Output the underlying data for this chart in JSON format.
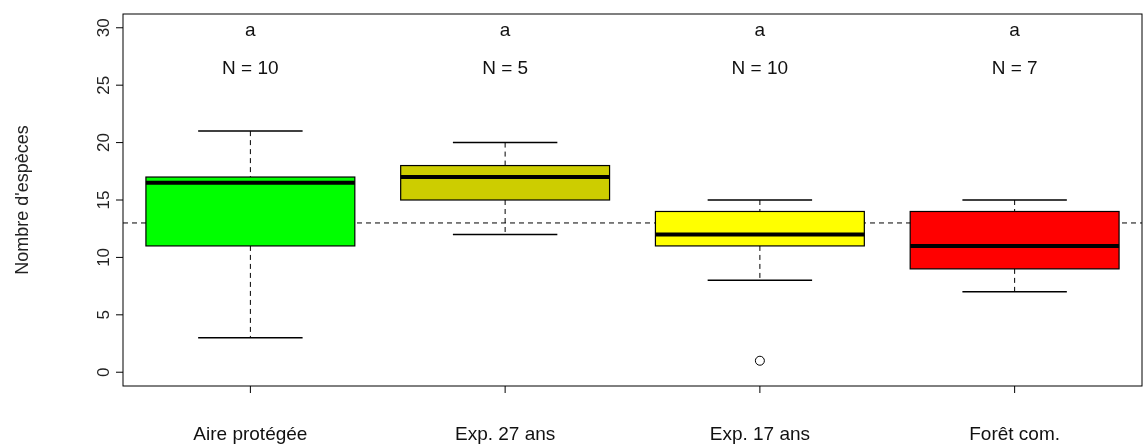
{
  "chart_data": {
    "type": "box",
    "ylabel": "Nombre d'espèces",
    "categories": [
      "Aire protégée",
      "Exp. 27 ans",
      "Exp. 17 ans",
      "Forêt com."
    ],
    "colors": [
      "#00ff00",
      "#cdcd00",
      "#ffff00",
      "#ff0000"
    ],
    "boxes": [
      {
        "low": 3,
        "q1": 11,
        "median": 16.5,
        "q3": 17,
        "high": 21
      },
      {
        "low": 12,
        "q1": 15,
        "median": 17,
        "q3": 18,
        "high": 20
      },
      {
        "low": 8,
        "q1": 11,
        "median": 12,
        "q3": 14,
        "high": 15,
        "outliers": [
          1
        ]
      },
      {
        "low": 7,
        "q1": 9,
        "median": 11,
        "q3": 14,
        "high": 15
      }
    ],
    "ylim": [
      -1.2,
      31.2
    ],
    "yticks": [
      0,
      5,
      10,
      15,
      20,
      25,
      30
    ],
    "ref_lines": [
      {
        "axis": "y",
        "value": 13,
        "line_style": "dashed"
      }
    ],
    "annotations": [
      "a",
      "N = 10",
      "a",
      "N = 5",
      "a",
      "N = 10",
      "a",
      "N = 7"
    ]
  }
}
